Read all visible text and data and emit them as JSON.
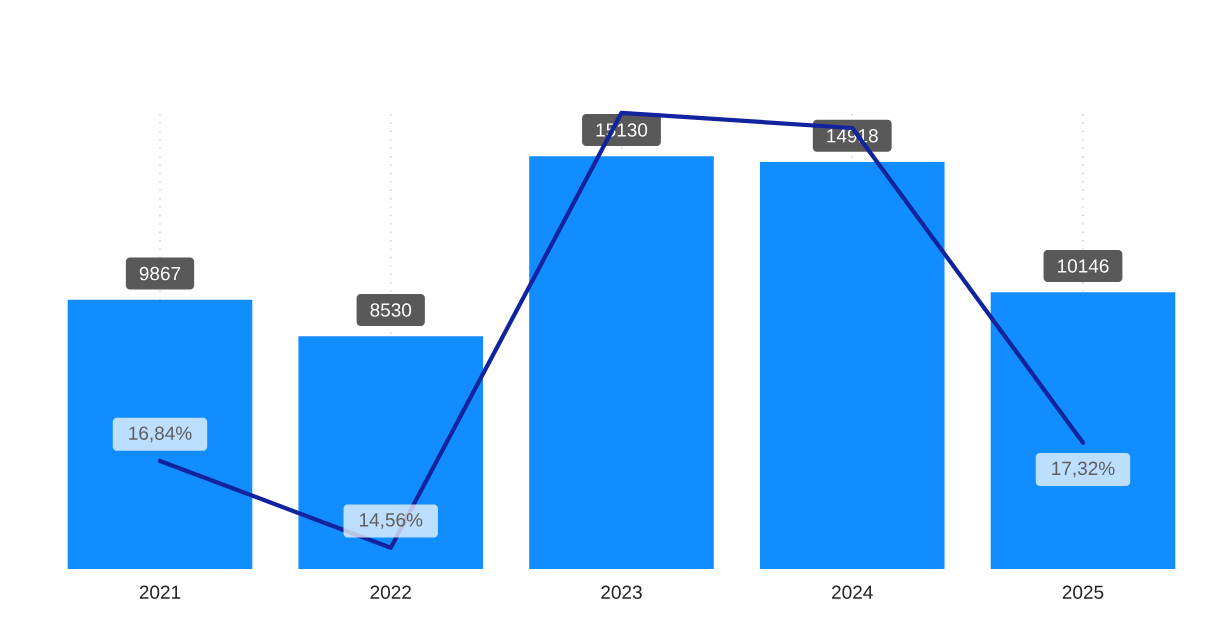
{
  "chart_data": {
    "type": "bar",
    "categories": [
      "2021",
      "2022",
      "2023",
      "2024",
      "2025"
    ],
    "series": [
      {
        "color": "#118dff",
        "values": [
          9867,
          8530,
          15130,
          14918,
          10146
        ],
        "value_labels": [
          "9867",
          "8530",
          "15130",
          "14918",
          "10146"
        ]
      },
      {
        "type": "line",
        "axis": "y2",
        "color": "#12239e",
        "values": [
          16.84,
          14.56,
          26.0,
          25.6,
          17.32
        ],
        "value_labels": [
          "16,84%",
          "14,56%",
          null,
          null,
          "17,32%"
        ]
      }
    ],
    "ylim": [
      0,
      16860
    ],
    "y2lim": [
      14,
      26.1
    ],
    "grid": "x",
    "tick_labels": "x"
  }
}
